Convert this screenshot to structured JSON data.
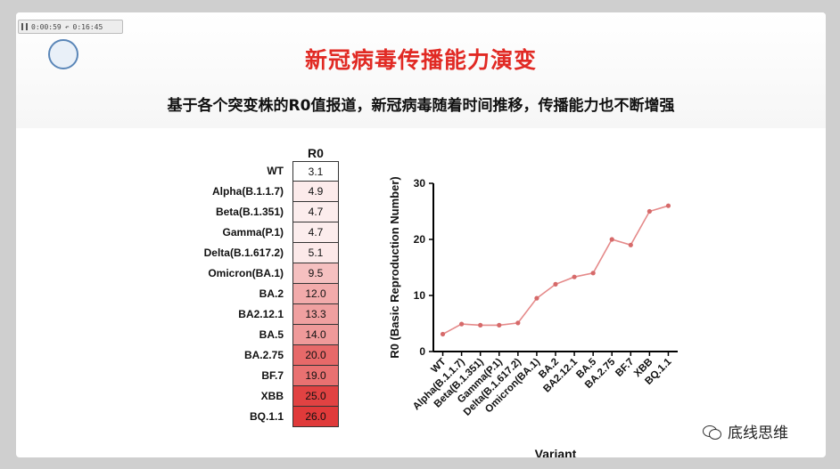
{
  "player": {
    "elapsed": "0:00:59",
    "total": "0:16:45"
  },
  "slide": {
    "title": "新冠病毒传播能力演变",
    "subtitle": "基于各个突变株的R0值报道，新冠病毒随着时间推移，传播能力也不断增强"
  },
  "heatmap": {
    "header": "R0",
    "low_color": "#ffffff",
    "high_color": "#e03a3a",
    "rows": [
      {
        "label": "WT",
        "value": "3.1"
      },
      {
        "label": "Alpha(B.1.1.7)",
        "value": "4.9"
      },
      {
        "label": "Beta(B.1.351)",
        "value": "4.7"
      },
      {
        "label": "Gamma(P.1)",
        "value": "4.7"
      },
      {
        "label": "Delta(B.1.617.2)",
        "value": "5.1"
      },
      {
        "label": "Omicron(BA.1)",
        "value": "9.5"
      },
      {
        "label": "BA.2",
        "value": "12.0"
      },
      {
        "label": "BA2.12.1",
        "value": "13.3"
      },
      {
        "label": "BA.5",
        "value": "14.0"
      },
      {
        "label": "BA.2.75",
        "value": "20.0"
      },
      {
        "label": "BF.7",
        "value": "19.0"
      },
      {
        "label": "XBB",
        "value": "25.0"
      },
      {
        "label": "BQ.1.1",
        "value": "26.0"
      }
    ]
  },
  "chart_data": {
    "type": "line",
    "categories": [
      "WT",
      "Alpha(B.1.1.7)",
      "Beta(B.1.351)",
      "Gamma(P.1)",
      "Delta(B.1.617.2)",
      "Omicron(BA.1)",
      "BA.2",
      "BA2.12.1",
      "BA.5",
      "BA.2.75",
      "BF.7",
      "XBB",
      "BQ.1.1"
    ],
    "values": [
      3.1,
      4.9,
      4.7,
      4.7,
      5.1,
      9.5,
      12.0,
      13.3,
      14.0,
      20.0,
      19.0,
      25.0,
      26.0
    ],
    "xlabel": "Variant",
    "ylabel": "R0 (Basic Reproduction Number)",
    "ylim": [
      0,
      30
    ],
    "yticks": [
      "0",
      "10",
      "20",
      "30"
    ],
    "grid": false,
    "line_color": "#e58a8a"
  },
  "watermark": {
    "text": "底线思维",
    "icon": "wechat-icon"
  }
}
